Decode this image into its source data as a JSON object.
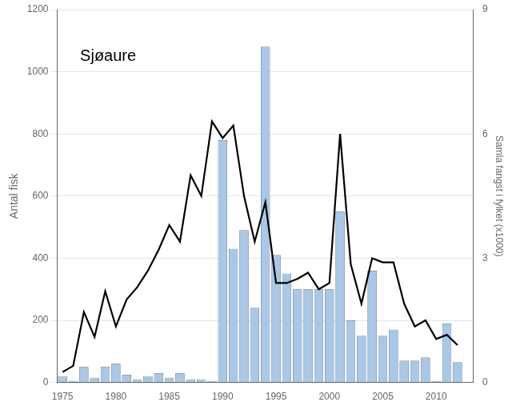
{
  "chart_data": {
    "type": "bar",
    "x": [
      1975,
      1976,
      1977,
      1978,
      1979,
      1980,
      1981,
      1982,
      1983,
      1984,
      1985,
      1986,
      1987,
      1988,
      1989,
      1990,
      1991,
      1992,
      1993,
      1994,
      1995,
      1996,
      1997,
      1998,
      1999,
      2000,
      2001,
      2002,
      2003,
      2004,
      2005,
      2006,
      2007,
      2008,
      2009,
      2010,
      2011,
      2012
    ],
    "series": [
      {
        "type": "bar",
        "color": "#a8c8e8",
        "values": [
          20,
          5,
          50,
          15,
          50,
          60,
          25,
          10,
          20,
          30,
          15,
          30,
          10,
          10,
          5,
          780,
          430,
          490,
          240,
          1080,
          410,
          350,
          300,
          300,
          300,
          300,
          550,
          200,
          150,
          360,
          150,
          170,
          70,
          70,
          80,
          5,
          190,
          65
        ]
      },
      {
        "type": "line",
        "color": "#000000",
        "axis": "y2",
        "values": [
          0.25,
          0.4,
          1.7,
          1.1,
          2.2,
          1.35,
          2.0,
          2.3,
          2.7,
          3.2,
          3.8,
          3.4,
          5.0,
          4.5,
          6.3,
          5.9,
          6.2,
          4.5,
          3.4,
          4.35,
          2.4,
          2.4,
          2.5,
          2.65,
          2.25,
          2.4,
          6.0,
          2.85,
          1.9,
          3.0,
          2.9,
          2.9,
          1.9,
          1.35,
          1.5,
          1.05,
          1.15,
          0.9
        ]
      }
    ],
    "xlim": [
      1974.5,
      2013.5
    ],
    "xticks": [
      1975,
      1980,
      1985,
      1990,
      1995,
      2000,
      2005,
      2010
    ],
    "ylim": [
      0,
      1200
    ],
    "yticks": [
      0,
      200,
      400,
      600,
      800,
      1000,
      1200
    ],
    "y2lim": [
      0,
      9
    ],
    "y2ticks": [
      0,
      3,
      6,
      9
    ],
    "ylabel": "Antal fisk",
    "y2label": "Samla fangst i fylket (x1000)",
    "annotation": "Sjøaure",
    "grid": "y"
  }
}
